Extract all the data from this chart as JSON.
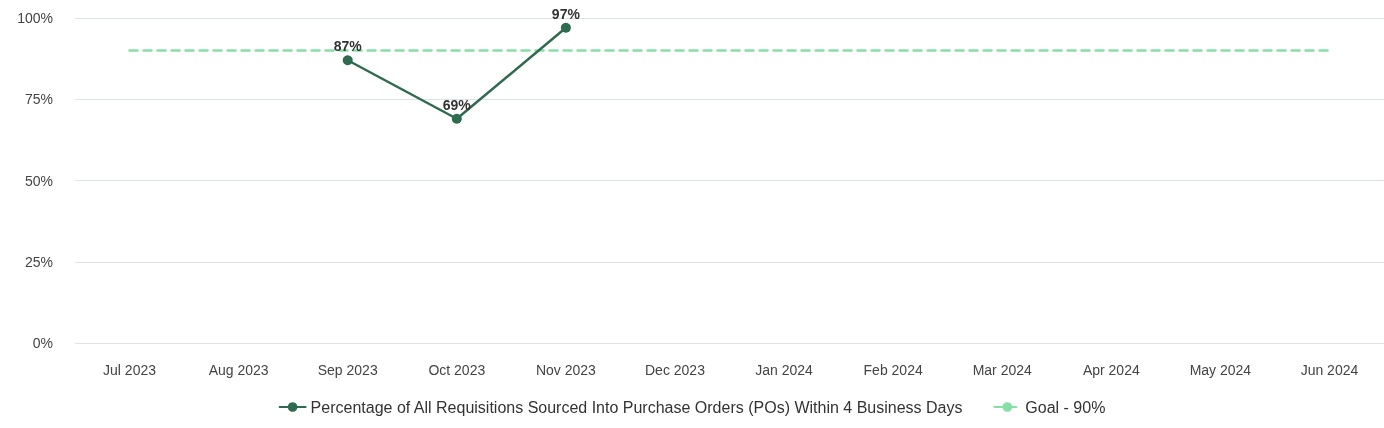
{
  "chart_data": {
    "type": "line",
    "categories": [
      "Jul 2023",
      "Aug 2023",
      "Sep 2023",
      "Oct 2023",
      "Nov 2023",
      "Dec 2023",
      "Jan 2024",
      "Feb 2024",
      "Mar 2024",
      "Apr 2024",
      "May 2024",
      "Jun 2024"
    ],
    "series": [
      {
        "name": "Percentage of All Requisitions Sourced Into Purchase Orders (POs) Within 4 Business Days",
        "color": "#2e6b4f",
        "marker": "circle",
        "line_style": "solid",
        "values": [
          null,
          null,
          87,
          69,
          97,
          null,
          null,
          null,
          null,
          null,
          null,
          null
        ],
        "value_labels": [
          null,
          null,
          "87%",
          "69%",
          "97%",
          null,
          null,
          null,
          null,
          null,
          null,
          null
        ]
      },
      {
        "name": "Goal - 90%",
        "color": "#86e0a6",
        "marker": "none",
        "line_style": "dashed",
        "values": [
          90,
          90,
          90,
          90,
          90,
          90,
          90,
          90,
          90,
          90,
          90,
          90
        ]
      }
    ],
    "ylim": [
      0,
      100
    ],
    "yticks": [
      {
        "value": 0,
        "label": "0%"
      },
      {
        "value": 25,
        "label": "25%"
      },
      {
        "value": 50,
        "label": "50%"
      },
      {
        "value": 75,
        "label": "75%"
      },
      {
        "value": 100,
        "label": "100%"
      }
    ],
    "grid": "y",
    "legend": "bottom"
  }
}
